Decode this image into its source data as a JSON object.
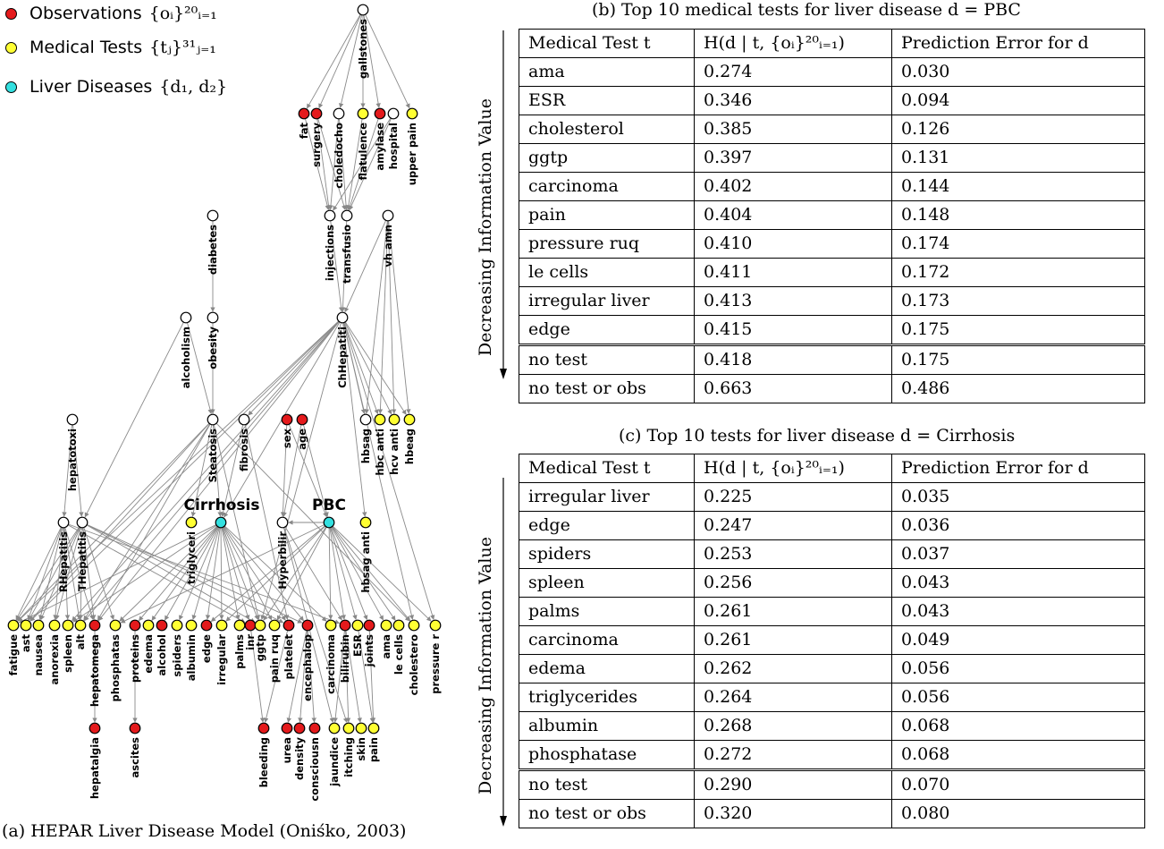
{
  "legend": [
    {
      "label": "Observations",
      "math": "{oᵢ}²⁰ᵢ₌₁",
      "color": "#e41a1c"
    },
    {
      "label": "Medical Tests",
      "math": "{tⱼ}³¹ⱼ₌₁",
      "color": "#ffff33"
    },
    {
      "label": "Liver Diseases",
      "math": "{d₁, d₂}",
      "color": "#33e0e0"
    }
  ],
  "graph": {
    "caption": "(a) HEPAR Liver Disease Model (Oniśko, 2003)",
    "colors": {
      "obs": "#e41a1c",
      "test": "#ffff33",
      "disease": "#33e0e0",
      "hidden": "#ffffff"
    },
    "disease_labels": [
      "Cirrhosis",
      "PBC"
    ],
    "nodes": [
      {
        "id": "gallstones",
        "label": "gallstones",
        "type": "hidden"
      },
      {
        "id": "fat",
        "label": "fat",
        "type": "obs"
      },
      {
        "id": "surgery",
        "label": "surgery",
        "type": "obs"
      },
      {
        "id": "choledocho",
        "label": "choledocho",
        "type": "hidden"
      },
      {
        "id": "flatulence",
        "label": "flatulence",
        "type": "test"
      },
      {
        "id": "amylase",
        "label": "amylase",
        "type": "obs"
      },
      {
        "id": "hospital",
        "label": "hospital",
        "type": "hidden"
      },
      {
        "id": "upperpain",
        "label": "upper pain",
        "type": "test"
      },
      {
        "id": "diabetes",
        "label": "diabetes",
        "type": "hidden"
      },
      {
        "id": "injections",
        "label": "injections",
        "type": "hidden"
      },
      {
        "id": "transfusio",
        "label": "transfusio",
        "type": "hidden"
      },
      {
        "id": "vhamn",
        "label": "vh amn",
        "type": "hidden"
      },
      {
        "id": "alcoholism",
        "label": "alcoholism",
        "type": "hidden"
      },
      {
        "id": "obesity",
        "label": "obesity",
        "type": "hidden"
      },
      {
        "id": "chhepatiti",
        "label": "ChHepatiti",
        "type": "hidden"
      },
      {
        "id": "hepatotoxi",
        "label": "hepatotoxi",
        "type": "hidden"
      },
      {
        "id": "steatosis",
        "label": "Steatosis",
        "type": "hidden"
      },
      {
        "id": "fibrosis",
        "label": "fibrosis",
        "type": "hidden"
      },
      {
        "id": "sex",
        "label": "sex",
        "type": "obs"
      },
      {
        "id": "age",
        "label": "age",
        "type": "obs"
      },
      {
        "id": "hbsag",
        "label": "hbsag",
        "type": "hidden"
      },
      {
        "id": "hbcanti",
        "label": "hbc anti",
        "type": "test"
      },
      {
        "id": "hcvanti",
        "label": "hcv anti",
        "type": "test"
      },
      {
        "id": "hbeag",
        "label": "hbeag",
        "type": "test"
      },
      {
        "id": "rhepatitis",
        "label": "RHepatitis",
        "type": "hidden"
      },
      {
        "id": "thepatitis",
        "label": "THepatitis",
        "type": "hidden"
      },
      {
        "id": "triglyceri",
        "label": "triglyceri",
        "type": "test"
      },
      {
        "id": "cirrhosis",
        "label": "",
        "type": "disease"
      },
      {
        "id": "hyperbilir",
        "label": "Hyperbilir",
        "type": "hidden"
      },
      {
        "id": "pbc",
        "label": "",
        "type": "disease"
      },
      {
        "id": "hbsaganti",
        "label": "hbsag anti",
        "type": "test"
      },
      {
        "id": "fatigue",
        "label": "fatigue",
        "type": "test"
      },
      {
        "id": "ast",
        "label": "ast",
        "type": "test"
      },
      {
        "id": "nausea",
        "label": "nausea",
        "type": "test"
      },
      {
        "id": "anorexia",
        "label": "anorexia",
        "type": "test"
      },
      {
        "id": "spleen",
        "label": "spleen",
        "type": "test"
      },
      {
        "id": "alt",
        "label": "alt",
        "type": "test"
      },
      {
        "id": "hepatomega",
        "label": "hepatomega",
        "type": "obs"
      },
      {
        "id": "phosphatas",
        "label": "phosphatas",
        "type": "test"
      },
      {
        "id": "proteins",
        "label": "proteins",
        "type": "obs"
      },
      {
        "id": "edema",
        "label": "edema",
        "type": "test"
      },
      {
        "id": "alcohol",
        "label": "alcohol",
        "type": "obs"
      },
      {
        "id": "spiders",
        "label": "spiders",
        "type": "test"
      },
      {
        "id": "albumin",
        "label": "albumin",
        "type": "test"
      },
      {
        "id": "edge",
        "label": "edge",
        "type": "obs"
      },
      {
        "id": "irregular",
        "label": "irregular",
        "type": "test"
      },
      {
        "id": "palms",
        "label": "palms",
        "type": "test"
      },
      {
        "id": "inr",
        "label": "inr",
        "type": "obs"
      },
      {
        "id": "ggtp",
        "label": "ggtp",
        "type": "test"
      },
      {
        "id": "painruq",
        "label": "pain ruq",
        "type": "test"
      },
      {
        "id": "platelet",
        "label": "platelet",
        "type": "obs"
      },
      {
        "id": "encephalop",
        "label": "encephalop",
        "type": "obs"
      },
      {
        "id": "carcinoma",
        "label": "carcinoma",
        "type": "test"
      },
      {
        "id": "bilirubin",
        "label": "bilirubin",
        "type": "obs"
      },
      {
        "id": "esr",
        "label": "ESR",
        "type": "test"
      },
      {
        "id": "joints",
        "label": "joints",
        "type": "obs"
      },
      {
        "id": "ama",
        "label": "ama",
        "type": "test"
      },
      {
        "id": "lecells",
        "label": "le cells",
        "type": "test"
      },
      {
        "id": "cholestero",
        "label": "cholestero",
        "type": "test"
      },
      {
        "id": "pressurer",
        "label": "pressure r",
        "type": "test"
      },
      {
        "id": "hepatalgia",
        "label": "hepatalgia",
        "type": "obs"
      },
      {
        "id": "ascites",
        "label": "ascites",
        "type": "obs"
      },
      {
        "id": "bleeding",
        "label": "bleeding",
        "type": "obs"
      },
      {
        "id": "urea",
        "label": "urea",
        "type": "obs"
      },
      {
        "id": "density",
        "label": "density",
        "type": "obs"
      },
      {
        "id": "consciousn",
        "label": "consciousn",
        "type": "obs"
      },
      {
        "id": "jaundice",
        "label": "jaundice",
        "type": "test"
      },
      {
        "id": "itching",
        "label": "itching",
        "type": "test"
      },
      {
        "id": "skin",
        "label": "skin",
        "type": "test"
      },
      {
        "id": "pain",
        "label": "pain",
        "type": "test"
      }
    ],
    "edges": [
      [
        "gallstones",
        "fat"
      ],
      [
        "gallstones",
        "surgery"
      ],
      [
        "gallstones",
        "flatulence"
      ],
      [
        "gallstones",
        "amylase"
      ],
      [
        "gallstones",
        "upperpain"
      ],
      [
        "gallstones",
        "choledocho"
      ],
      [
        "surgery",
        "injections"
      ],
      [
        "surgery",
        "transfusio"
      ],
      [
        "choledocho",
        "injections"
      ],
      [
        "choledocho",
        "transfusio"
      ],
      [
        "hospital",
        "injections"
      ],
      [
        "hospital",
        "transfusio"
      ],
      [
        "fat",
        "injections"
      ],
      [
        "flatulence",
        "transfusio"
      ],
      [
        "amylase",
        "transfusio"
      ],
      [
        "diabetes",
        "obesity"
      ],
      [
        "obesity",
        "steatosis"
      ],
      [
        "alcoholism",
        "steatosis"
      ],
      [
        "alcoholism",
        "thepatitis"
      ],
      [
        "injections",
        "chhepatiti"
      ],
      [
        "transfusio",
        "chhepatiti"
      ],
      [
        "vhamn",
        "chhepatiti"
      ],
      [
        "vhamn",
        "hbsag"
      ],
      [
        "vhamn",
        "hbcanti"
      ],
      [
        "vhamn",
        "hcvanti"
      ],
      [
        "vhamn",
        "hbeag"
      ],
      [
        "chhepatiti",
        "hbsag"
      ],
      [
        "chhepatiti",
        "hbcanti"
      ],
      [
        "chhepatiti",
        "hcvanti"
      ],
      [
        "chhepatiti",
        "hbeag"
      ],
      [
        "chhepatiti",
        "hbsaganti"
      ],
      [
        "chhepatiti",
        "fatigue"
      ],
      [
        "chhepatiti",
        "ast"
      ],
      [
        "chhepatiti",
        "alt"
      ],
      [
        "chhepatiti",
        "spleen"
      ],
      [
        "chhepatiti",
        "cirrhosis"
      ],
      [
        "chhepatiti",
        "fibrosis"
      ],
      [
        "chhepatiti",
        "hepatomega"
      ],
      [
        "chhepatiti",
        "ggtp"
      ],
      [
        "chhepatiti",
        "pressurer"
      ],
      [
        "chhepatiti",
        "cholestero"
      ],
      [
        "hepatotoxi",
        "thepatitis"
      ],
      [
        "hepatotoxi",
        "rhepatitis"
      ],
      [
        "steatosis",
        "fatigue"
      ],
      [
        "steatosis",
        "ast"
      ],
      [
        "steatosis",
        "alt"
      ],
      [
        "steatosis",
        "triglyceri"
      ],
      [
        "steatosis",
        "hepatomega"
      ],
      [
        "steatosis",
        "cirrhosis"
      ],
      [
        "steatosis",
        "cholestero"
      ],
      [
        "steatosis",
        "ggtp"
      ],
      [
        "fibrosis",
        "cirrhosis"
      ],
      [
        "fibrosis",
        "platelet"
      ],
      [
        "sex",
        "pbc"
      ],
      [
        "age",
        "pbc"
      ],
      [
        "sex",
        "hyperbilir"
      ],
      [
        "age",
        "hyperbilir"
      ],
      [
        "thepatitis",
        "fatigue"
      ],
      [
        "thepatitis",
        "ast"
      ],
      [
        "thepatitis",
        "nausea"
      ],
      [
        "thepatitis",
        "anorexia"
      ],
      [
        "thepatitis",
        "alt"
      ],
      [
        "thepatitis",
        "hepatomega"
      ],
      [
        "thepatitis",
        "platelet"
      ],
      [
        "thepatitis",
        "ggtp"
      ],
      [
        "thepatitis",
        "encephalop"
      ],
      [
        "thepatitis",
        "phosphatas"
      ],
      [
        "rhepatitis",
        "fatigue"
      ],
      [
        "rhepatitis",
        "ast"
      ],
      [
        "rhepatitis",
        "nausea"
      ],
      [
        "rhepatitis",
        "anorexia"
      ],
      [
        "rhepatitis",
        "alt"
      ],
      [
        "rhepatitis",
        "spleen"
      ],
      [
        "rhepatitis",
        "hepatomega"
      ],
      [
        "rhepatitis",
        "inr"
      ],
      [
        "rhepatitis",
        "bilirubin"
      ],
      [
        "cirrhosis",
        "fatigue"
      ],
      [
        "cirrhosis",
        "proteins"
      ],
      [
        "cirrhosis",
        "edema"
      ],
      [
        "cirrhosis",
        "alcohol"
      ],
      [
        "cirrhosis",
        "spiders"
      ],
      [
        "cirrhosis",
        "albumin"
      ],
      [
        "cirrhosis",
        "edge"
      ],
      [
        "cirrhosis",
        "irregular"
      ],
      [
        "cirrhosis",
        "palms"
      ],
      [
        "cirrhosis",
        "inr"
      ],
      [
        "cirrhosis",
        "ggtp"
      ],
      [
        "cirrhosis",
        "painruq"
      ],
      [
        "cirrhosis",
        "platelet"
      ],
      [
        "cirrhosis",
        "encephalop"
      ],
      [
        "cirrhosis",
        "carcinoma"
      ],
      [
        "cirrhosis",
        "spleen"
      ],
      [
        "cirrhosis",
        "phosphatas"
      ],
      [
        "pbc",
        "ama"
      ],
      [
        "pbc",
        "esr"
      ],
      [
        "pbc",
        "lecells"
      ],
      [
        "pbc",
        "cholestero"
      ],
      [
        "pbc",
        "carcinoma"
      ],
      [
        "pbc",
        "pressurer"
      ],
      [
        "pbc",
        "joints"
      ],
      [
        "pbc",
        "bilirubin"
      ],
      [
        "pbc",
        "ggtp"
      ],
      [
        "pbc",
        "painruq"
      ],
      [
        "pbc",
        "phosphatas"
      ],
      [
        "pbc",
        "irregular"
      ],
      [
        "pbc",
        "edge"
      ],
      [
        "pbc",
        "hyperbilir"
      ],
      [
        "hyperbilir",
        "bilirubin"
      ],
      [
        "hyperbilir",
        "jaundice"
      ],
      [
        "hyperbilir",
        "itching"
      ],
      [
        "hepatomega",
        "hepatalgia"
      ],
      [
        "proteins",
        "ascites"
      ],
      [
        "inr",
        "bleeding"
      ],
      [
        "platelet",
        "bleeding"
      ],
      [
        "encephalop",
        "urea"
      ],
      [
        "encephalop",
        "density"
      ],
      [
        "encephalop",
        "consciousn"
      ],
      [
        "bilirubin",
        "jaundice"
      ],
      [
        "bilirubin",
        "itching"
      ],
      [
        "bilirubin",
        "skin"
      ],
      [
        "joints",
        "pain"
      ],
      [
        "esr",
        "pain"
      ]
    ]
  },
  "table_b": {
    "caption": "(b) Top 10 medical tests for liver disease d = PBC",
    "side_label": "Decreasing Information Value",
    "headers": [
      "Medical Test t",
      "H(d | t, {oᵢ}²⁰ᵢ₌₁)",
      "Prediction Error for d"
    ],
    "rows": [
      [
        "ama",
        "0.274",
        "0.030"
      ],
      [
        "ESR",
        "0.346",
        "0.094"
      ],
      [
        "cholesterol",
        "0.385",
        "0.126"
      ],
      [
        "ggtp",
        "0.397",
        "0.131"
      ],
      [
        "carcinoma",
        "0.402",
        "0.144"
      ],
      [
        "pain",
        "0.404",
        "0.148"
      ],
      [
        "pressure ruq",
        "0.410",
        "0.174"
      ],
      [
        "le cells",
        "0.411",
        "0.172"
      ],
      [
        "irregular liver",
        "0.413",
        "0.173"
      ],
      [
        "edge",
        "0.415",
        "0.175"
      ]
    ],
    "baseline": [
      [
        "no test",
        "0.418",
        "0.175"
      ],
      [
        "no test or obs",
        "0.663",
        "0.486"
      ]
    ]
  },
  "table_c": {
    "caption": "(c) Top 10 tests for liver disease d = Cirrhosis",
    "side_label": "Decreasing Information Value",
    "headers": [
      "Medical Test t",
      "H(d | t, {oᵢ}²⁰ᵢ₌₁)",
      "Prediction Error for d"
    ],
    "rows": [
      [
        "irregular liver",
        "0.225",
        "0.035"
      ],
      [
        "edge",
        "0.247",
        "0.036"
      ],
      [
        "spiders",
        "0.253",
        "0.037"
      ],
      [
        "spleen",
        "0.256",
        "0.043"
      ],
      [
        "palms",
        "0.261",
        "0.043"
      ],
      [
        "carcinoma",
        "0.261",
        "0.049"
      ],
      [
        "edema",
        "0.262",
        "0.056"
      ],
      [
        "triglycerides",
        "0.264",
        "0.056"
      ],
      [
        "albumin",
        "0.268",
        "0.068"
      ],
      [
        "phosphatase",
        "0.272",
        "0.068"
      ]
    ],
    "baseline": [
      [
        "no test",
        "0.290",
        "0.070"
      ],
      [
        "no test or obs",
        "0.320",
        "0.080"
      ]
    ]
  }
}
